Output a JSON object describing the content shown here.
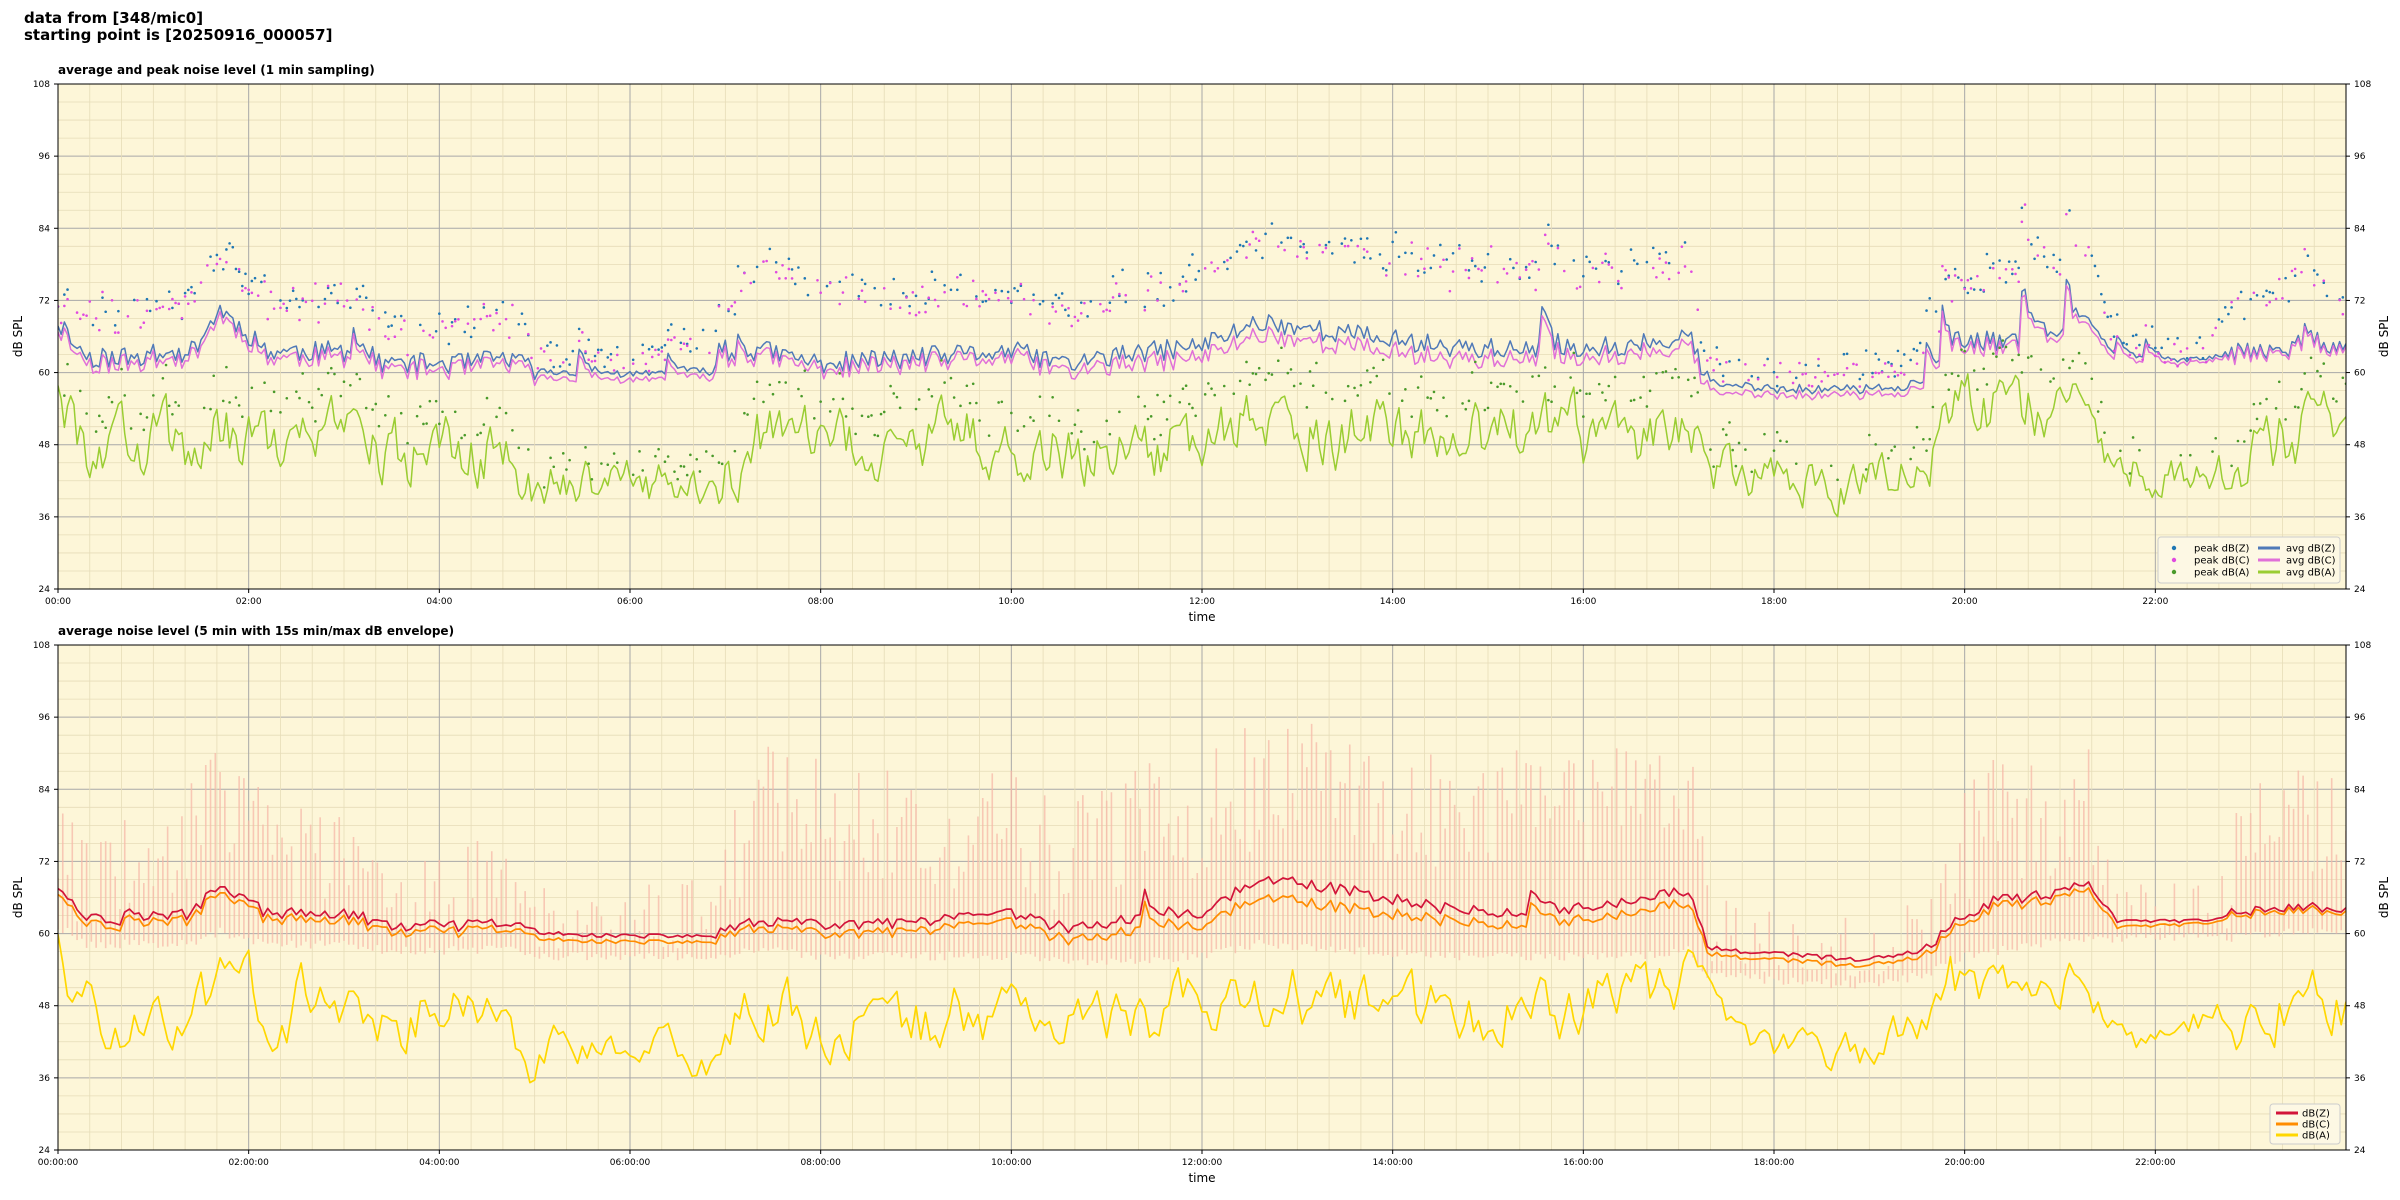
{
  "header": {
    "line1": "data from [348/mic0]",
    "line2": "starting point is [20250916_000057]"
  },
  "colors": {
    "background": "#fdf6d8",
    "peak_z": "#1f77b4",
    "peak_c": "#e04ae0",
    "peak_a": "#4a9a2a",
    "avg_z": "#4f79b8",
    "avg_c": "#e070d8",
    "avg_a": "#9acd32",
    "dbz": "#d2143a",
    "dbc": "#ff8c00",
    "dba": "#ffd700",
    "envelope": "#f5b8a8"
  },
  "chart_data": [
    {
      "type": "line",
      "title": "average and peak noise level (1 min sampling)",
      "xlabel": "time",
      "ylabel": "dB SPL",
      "ylim": [
        24,
        108
      ],
      "xlim_hours": [
        0,
        24
      ],
      "yticks": [
        "24",
        "36",
        "48",
        "60",
        "72",
        "84",
        "96",
        "108"
      ],
      "xticks": [
        "00:00",
        "02:00",
        "04:00",
        "06:00",
        "08:00",
        "10:00",
        "12:00",
        "14:00",
        "16:00",
        "18:00",
        "20:00",
        "22:00"
      ],
      "grid": true,
      "legend_position": "lower-right",
      "legend": [
        "peak dB(Z)",
        "peak dB(C)",
        "peak dB(A)",
        "avg dB(Z)",
        "avg dB(C)",
        "avg dB(A)"
      ],
      "profile_hours": [
        0,
        0.3,
        0.7,
        1.4,
        1.7,
        2.2,
        3.1,
        3.4,
        4.3,
        4.7,
        5.0,
        6.0,
        6.9,
        7.4,
        8.0,
        9.0,
        10.0,
        10.6,
        11.0,
        12.0,
        12.6,
        13.5,
        14.5,
        15.5,
        16.5,
        17.1,
        17.3,
        18.0,
        19.0,
        19.6,
        20.0,
        20.8,
        21.3,
        21.6,
        22.5,
        22.8,
        23.5,
        24.0
      ],
      "series": [
        {
          "name": "avg dB(Z)",
          "values": [
            68,
            62,
            62,
            63,
            70,
            63,
            63,
            61,
            61,
            62,
            60,
            59.5,
            60,
            63,
            61,
            62,
            63,
            61,
            62,
            64,
            68,
            66,
            64,
            63,
            64,
            66,
            58,
            57,
            57,
            58,
            64,
            66,
            68,
            62,
            62,
            63,
            64,
            64
          ]
        },
        {
          "name": "avg dB(C)",
          "values": [
            67,
            61,
            61,
            62,
            69,
            62,
            62,
            60,
            60,
            61,
            59,
            58.5,
            59,
            62,
            60,
            61,
            62,
            59.5,
            60.5,
            62,
            66,
            64,
            62,
            61.5,
            62.5,
            64.5,
            56.5,
            56,
            56,
            57,
            63,
            65,
            67,
            61,
            61.5,
            62.5,
            63.5,
            63.5
          ]
        },
        {
          "name": "avg dB(A)",
          "values": [
            56,
            48,
            48,
            47,
            50,
            49,
            48,
            46,
            47,
            47,
            42,
            41,
            42,
            49,
            47,
            48,
            50,
            46,
            47,
            48,
            52,
            50,
            49,
            50,
            48,
            54,
            44,
            42,
            42,
            45,
            53,
            55,
            52,
            44,
            43,
            44,
            50,
            49
          ]
        },
        {
          "name": "peak dB(Z)",
          "values": [
            72,
            70,
            70,
            72,
            80,
            72,
            72,
            67,
            67,
            70,
            63,
            62,
            65,
            78,
            74,
            72,
            73,
            70,
            72,
            76,
            82,
            80,
            78,
            77,
            78,
            80,
            62,
            60,
            61,
            63,
            74,
            78,
            80,
            64,
            64,
            70,
            76,
            72
          ]
        },
        {
          "name": "peak dB(C)",
          "values": [
            71,
            69,
            69,
            71,
            79,
            71,
            71,
            66,
            66,
            69,
            62,
            61,
            64,
            77,
            73,
            71,
            72,
            69,
            71,
            75,
            81,
            79,
            77,
            76,
            77,
            79,
            61,
            59,
            60,
            62,
            73,
            77,
            79,
            63,
            63,
            69,
            75,
            71
          ]
        },
        {
          "name": "peak dB(A)",
          "values": [
            62,
            54,
            54,
            54,
            58,
            56,
            55,
            52,
            53,
            53,
            45,
            44,
            46,
            56,
            53,
            55,
            57,
            52,
            53,
            55,
            60,
            58,
            56,
            57,
            55,
            62,
            48,
            46,
            46,
            50,
            60,
            62,
            58,
            47,
            46,
            48,
            57,
            55
          ]
        }
      ]
    },
    {
      "type": "line",
      "title": "average noise level (5 min with 15s min/max dB envelope)",
      "xlabel": "time",
      "ylabel": "dB SPL",
      "ylim": [
        24,
        108
      ],
      "xlim_hours": [
        0,
        24
      ],
      "yticks": [
        "24",
        "36",
        "48",
        "60",
        "72",
        "84",
        "96",
        "108"
      ],
      "xticks": [
        "00:00:00",
        "02:00:00",
        "04:00:00",
        "06:00:00",
        "08:00:00",
        "10:00:00",
        "12:00:00",
        "14:00:00",
        "16:00:00",
        "18:00:00",
        "20:00:00",
        "22:00:00"
      ],
      "grid": true,
      "legend_position": "lower-right",
      "legend": [
        "dB(Z)",
        "dB(C)",
        "dB(A)"
      ],
      "profile_hours": [
        0,
        0.3,
        0.7,
        1.4,
        1.7,
        2.2,
        3.1,
        3.4,
        4.3,
        4.7,
        5.0,
        6.0,
        6.9,
        7.4,
        8.0,
        9.0,
        10.0,
        10.6,
        11.0,
        12.0,
        12.6,
        13.5,
        14.5,
        15.5,
        16.5,
        17.1,
        17.3,
        18.0,
        19.0,
        19.6,
        20.0,
        20.8,
        21.3,
        21.6,
        22.5,
        22.8,
        23.5,
        24.0
      ],
      "series": [
        {
          "name": "dB(Z)",
          "values": [
            68,
            62.5,
            62,
            63,
            68,
            63,
            63,
            61,
            61,
            61.5,
            60,
            59.5,
            59.5,
            62,
            61,
            61.5,
            63,
            60.5,
            61.5,
            63,
            69,
            67,
            64,
            63,
            65,
            67,
            57.5,
            56.5,
            55.5,
            57,
            63,
            66,
            68,
            62,
            62,
            63,
            64,
            64
          ]
        },
        {
          "name": "dB(C)",
          "values": [
            67,
            61.5,
            61,
            62,
            67,
            62,
            62,
            60,
            60,
            60.5,
            59,
            58.5,
            58.5,
            61,
            59.5,
            60,
            61.5,
            58.5,
            59.5,
            61,
            66,
            64,
            62,
            61,
            63,
            65,
            56.5,
            55.5,
            54.5,
            56,
            62,
            65,
            67,
            61,
            61.5,
            62.5,
            63.5,
            63.5
          ]
        },
        {
          "name": "dB(A)",
          "values": [
            56,
            47,
            47,
            46,
            50,
            48,
            50,
            46,
            47,
            47,
            41,
            40,
            40,
            48,
            44,
            45,
            48,
            44,
            46,
            47,
            51,
            48,
            46,
            48,
            48,
            52,
            45,
            41,
            41,
            45,
            54,
            52,
            51,
            44,
            44,
            45,
            49,
            48
          ]
        }
      ],
      "envelope": {
        "name": "15s min/max",
        "min": [
          62,
          59,
          59,
          59,
          61,
          59,
          59,
          58,
          58,
          58,
          57,
          57,
          57,
          58,
          57,
          57,
          57,
          56,
          56,
          57,
          59,
          58,
          57,
          57,
          57,
          58,
          54,
          53,
          52,
          54,
          57,
          59,
          60,
          60,
          60,
          60,
          61,
          61
        ],
        "max": [
          78,
          72,
          74,
          80,
          90,
          76,
          75,
          68,
          70,
          74,
          64,
          62,
          70,
          88,
          84,
          80,
          82,
          76,
          80,
          84,
          90,
          88,
          86,
          85,
          86,
          92,
          64,
          60,
          58,
          62,
          80,
          84,
          86,
          64,
          64,
          74,
          86,
          80
        ]
      }
    }
  ]
}
